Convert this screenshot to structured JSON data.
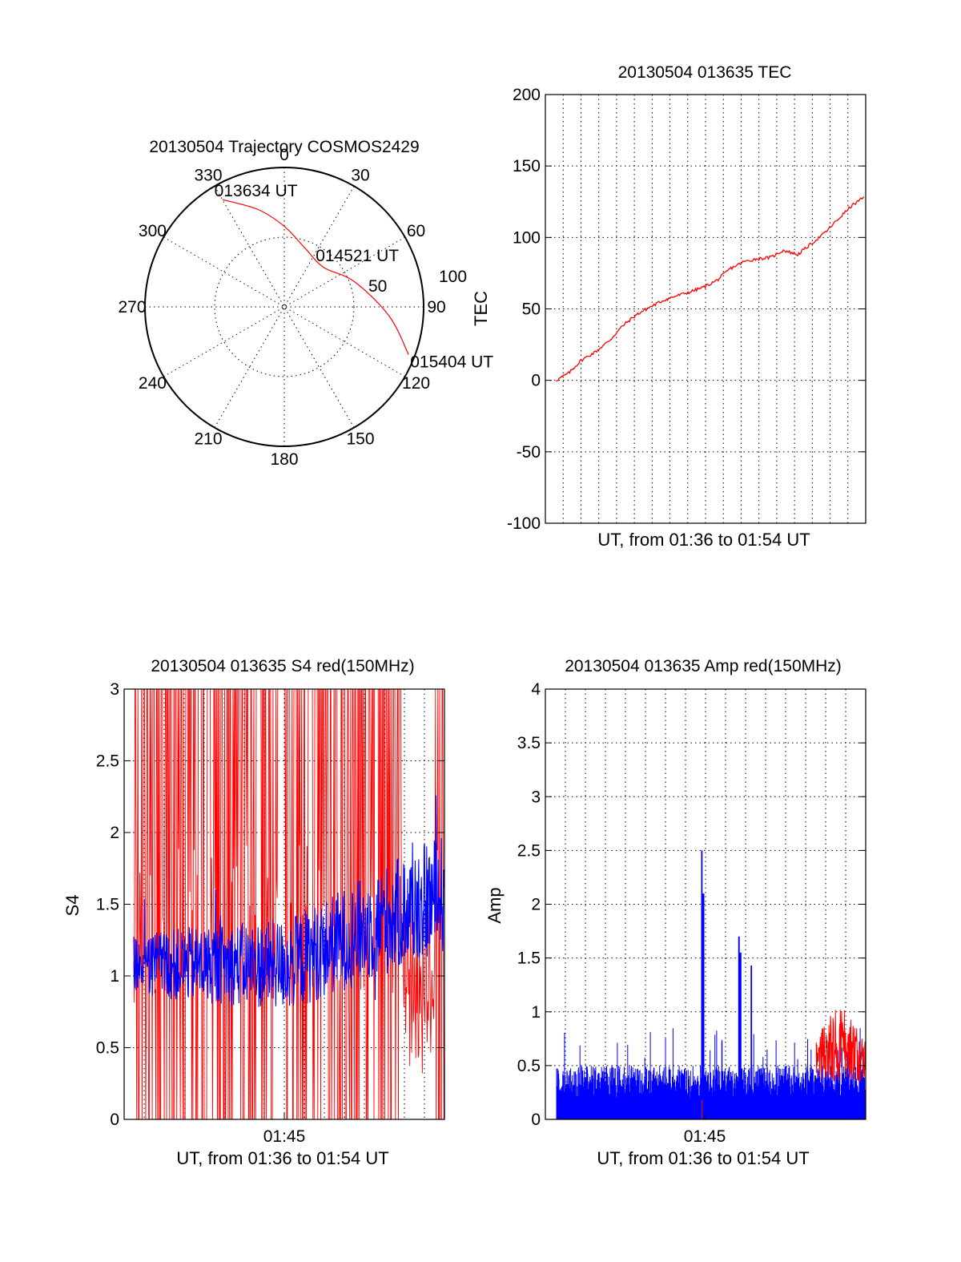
{
  "chart_data": [
    {
      "id": "polar",
      "type": "polar-trajectory",
      "title": "20130504 Trajectory COSMOS2429",
      "azimuth_labels": [
        "0",
        "30",
        "60",
        "90",
        "120",
        "150",
        "180",
        "210",
        "240",
        "270",
        "300",
        "330"
      ],
      "elevation_ring_labels": [
        "50",
        "100"
      ],
      "trajectory": [
        {
          "az": 330,
          "el": 10
        },
        {
          "az": 345,
          "el": 25
        },
        {
          "az": 0,
          "el": 38
        },
        {
          "az": 20,
          "el": 50
        },
        {
          "az": 45,
          "el": 54
        },
        {
          "az": 70,
          "el": 42
        },
        {
          "az": 95,
          "el": 22
        },
        {
          "az": 111,
          "el": 4
        }
      ],
      "annotations": [
        {
          "text": "013634 UT",
          "az": 330,
          "el": 10
        },
        {
          "text": "014521 UT",
          "az": 45,
          "el": 54
        },
        {
          "text": "015404 UT",
          "az": 111,
          "el": 4
        }
      ],
      "line_color": "#ff0000"
    },
    {
      "id": "tec",
      "type": "line",
      "title": "20130504 013635 TEC",
      "ylabel": "TEC",
      "xlabel": "UT, from 01:36 to 01:54 UT",
      "ylim": [
        -100,
        200
      ],
      "yticks": [
        -100,
        -50,
        0,
        50,
        100,
        150,
        200
      ],
      "xlim_minutes": [
        96.2,
        114.1
      ],
      "series": [
        {
          "name": "TEC",
          "color": "#ff0000",
          "x": [
            96.8,
            97.5,
            98.2,
            99.0,
            99.8,
            100.5,
            101.3,
            102.0,
            102.8,
            103.5,
            104.3,
            105.0,
            105.8,
            106.5,
            107.3,
            108.0,
            108.8,
            109.5,
            110.3,
            111.0,
            111.8,
            112.5,
            113.3,
            114.0
          ],
          "y": [
            0,
            5,
            14,
            20,
            28,
            38,
            46,
            51,
            56,
            59,
            62,
            65,
            70,
            78,
            83,
            85,
            86,
            91,
            88,
            95,
            103,
            112,
            122,
            128
          ]
        }
      ]
    },
    {
      "id": "s4",
      "type": "line",
      "title": "20130504 013635 S4 red(150MHz)",
      "ylabel": "S4",
      "xlabel": "UT, from 01:36 to 01:54 UT",
      "xtick_label": "01:45",
      "ylim": [
        0,
        3
      ],
      "yticks": [
        0,
        0.5,
        1,
        1.5,
        2,
        2.5,
        3
      ],
      "xlim_minutes": [
        96.2,
        114.1
      ],
      "series": [
        {
          "name": "S4 red (150MHz)",
          "color": "#ff0000",
          "note": "dense oscillation between 0 and 3 (off-scale); drops to ~0.3-1.5 near 01:53"
        },
        {
          "name": "S4",
          "color": "#0000ff",
          "note": "~1.0-1.1 from 01:36 to 01:45, rising to ~1.4-1.6 by 01:54"
        }
      ]
    },
    {
      "id": "amp",
      "type": "line",
      "title": "20130504 013635 Amp red(150MHz)",
      "ylabel": "Amp",
      "xlabel": "UT, from 01:36 to 01:54 UT",
      "xtick_label": "01:45",
      "ylim": [
        0,
        4
      ],
      "yticks": [
        0,
        0.5,
        1,
        1.5,
        2,
        2.5,
        3,
        3.5,
        4
      ],
      "xlim_minutes": [
        96.2,
        114.1
      ],
      "series": [
        {
          "name": "Amp",
          "color": "#0000ff",
          "note": "dense noise 0-0.5 with spikes: 2.5 near 01:45, 1.7 near 01:47, 1.45 near 01:48"
        },
        {
          "name": "Amp red (150MHz)",
          "color": "#ff0000",
          "note": "bursts ~0.4-1.05 between 01:52 and 01:54; small spike 0.18 near 01:45"
        }
      ]
    }
  ]
}
